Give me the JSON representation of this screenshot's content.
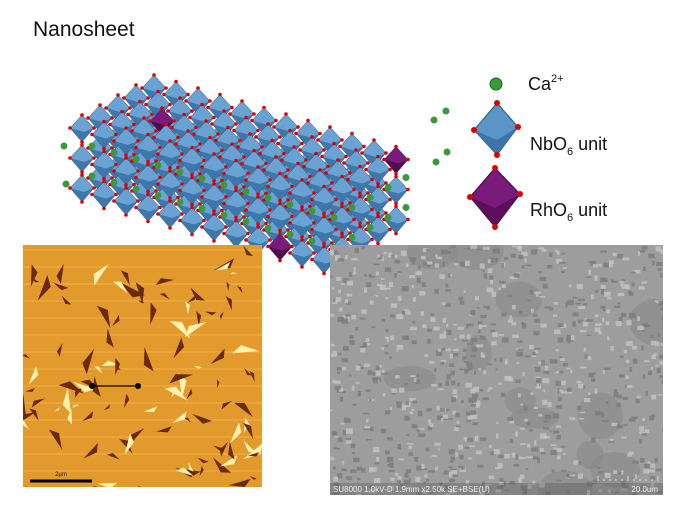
{
  "header": {
    "title": "Nanosheet"
  },
  "legend": [
    {
      "base": "Ca",
      "sup": "2+"
    },
    {
      "base": "NbO",
      "sub": "6",
      "suffix": " unit"
    },
    {
      "base": "RhO",
      "sub": "6",
      "suffix": " unit"
    }
  ],
  "afm_image": {
    "scale_label": "2µm"
  },
  "sem_image": {
    "info": "SU8000 1.0kV-D 1.9mm x2.50k SE+BSE(U)",
    "scale_label": "20.0um"
  }
}
